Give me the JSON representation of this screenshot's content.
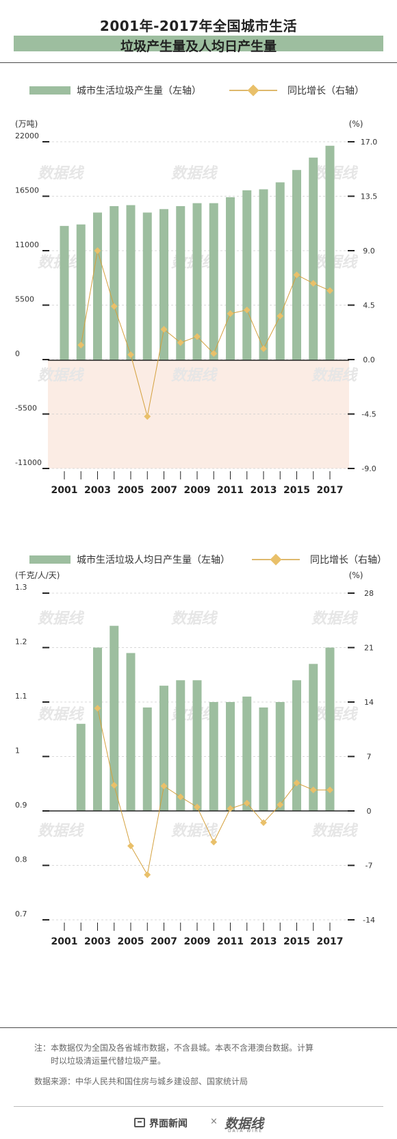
{
  "header": {
    "title_line1": "2001年-2017年全国城市生活",
    "title_line2": "垃圾产生量及人均日产生量"
  },
  "watermark": "数据线",
  "colors": {
    "bar": "#9dbe9f",
    "line": "#d4a03c",
    "marker": "#e9c06a",
    "negative_band": "#fbece4",
    "gridline": "#cccccc",
    "title_band": "#9dbe9f"
  },
  "chart_data": [
    {
      "type": "bar",
      "legend": {
        "bar_label": "城市生活垃圾产生量（左轴）",
        "line_label": "同比增长（右轴）"
      },
      "left_unit": "(万吨)",
      "right_unit": "(%)",
      "left_ticks": [
        "22000",
        "16500",
        "11000",
        "5500",
        "0",
        "-5500",
        "-11000"
      ],
      "right_ticks": [
        "17.0",
        "13.5",
        "9.0",
        "4.5",
        "0.0",
        "-4.5",
        "-9.0"
      ],
      "left_ylim": [
        -11000,
        22000
      ],
      "right_ylim": [
        -9,
        18
      ],
      "x_tick_labels": [
        "2001",
        "2003",
        "2005",
        "2007",
        "2009",
        "2011",
        "2013",
        "2015",
        "2017"
      ],
      "x": [
        2001,
        2002,
        2003,
        2004,
        2005,
        2006,
        2007,
        2008,
        2009,
        2010,
        2011,
        2012,
        2013,
        2014,
        2015,
        2016,
        2017
      ],
      "series": [
        {
          "name": "城市生活垃圾产生量",
          "axis": "left",
          "kind": "bar",
          "values": [
            13500,
            13650,
            14850,
            15500,
            15600,
            14850,
            15200,
            15500,
            15800,
            15800,
            16400,
            17100,
            17200,
            17900,
            19150,
            20400,
            21600
          ]
        },
        {
          "name": "同比增长",
          "axis": "right",
          "kind": "line",
          "values": [
            null,
            1.2,
            9.0,
            4.4,
            0.4,
            -4.7,
            2.5,
            1.4,
            1.9,
            0.5,
            3.8,
            4.1,
            0.9,
            3.6,
            7.0,
            6.3,
            5.7
          ]
        }
      ]
    },
    {
      "type": "bar",
      "legend": {
        "bar_label": "城市生活垃圾人均日产生量（左轴）",
        "line_label": "同比增长（右轴）"
      },
      "left_unit": "(千克/人/天)",
      "right_unit": "(%)",
      "left_ticks": [
        "1.3",
        "1.2",
        "1.1",
        "1",
        "0.9",
        "0.8",
        "0.7"
      ],
      "right_ticks": [
        "28",
        "21",
        "14",
        "7",
        "0",
        "-7",
        "-14"
      ],
      "left_ylim": [
        0.7,
        1.3
      ],
      "right_ylim": [
        -14,
        28
      ],
      "x_tick_labels": [
        "2001",
        "2003",
        "2005",
        "2007",
        "2009",
        "2011",
        "2013",
        "2015",
        "2017"
      ],
      "x": [
        2001,
        2002,
        2003,
        2004,
        2005,
        2006,
        2007,
        2008,
        2009,
        2010,
        2011,
        2012,
        2013,
        2014,
        2015,
        2016,
        2017
      ],
      "series": [
        {
          "name": "城市生活垃圾人均日产生量",
          "axis": "left",
          "kind": "bar",
          "values": [
            null,
            1.06,
            1.2,
            1.24,
            1.19,
            1.09,
            1.13,
            1.14,
            1.14,
            1.1,
            1.1,
            1.11,
            1.09,
            1.1,
            1.14,
            1.17,
            1.2
          ]
        },
        {
          "name": "同比增长",
          "axis": "right",
          "kind": "line",
          "values": [
            null,
            null,
            13.2,
            3.3,
            -4.5,
            -8.2,
            3.2,
            1.8,
            0.5,
            -4.0,
            0.3,
            1.0,
            -1.5,
            0.8,
            3.6,
            2.7,
            2.7
          ]
        }
      ]
    }
  ],
  "notes": {
    "line1": "注：本数据仅为全国及各省城市数据，不含县城。本表不含港澳台数据。计算",
    "line2": "时以垃圾清运量代替垃圾产量。",
    "source": "数据来源：中华人民共和国住房与城乡建设部、国家统计局"
  },
  "footer": {
    "brand": "界面新闻",
    "separator": "×",
    "logo_text": "数据线",
    "logo_sub": "DATA WIRE"
  }
}
